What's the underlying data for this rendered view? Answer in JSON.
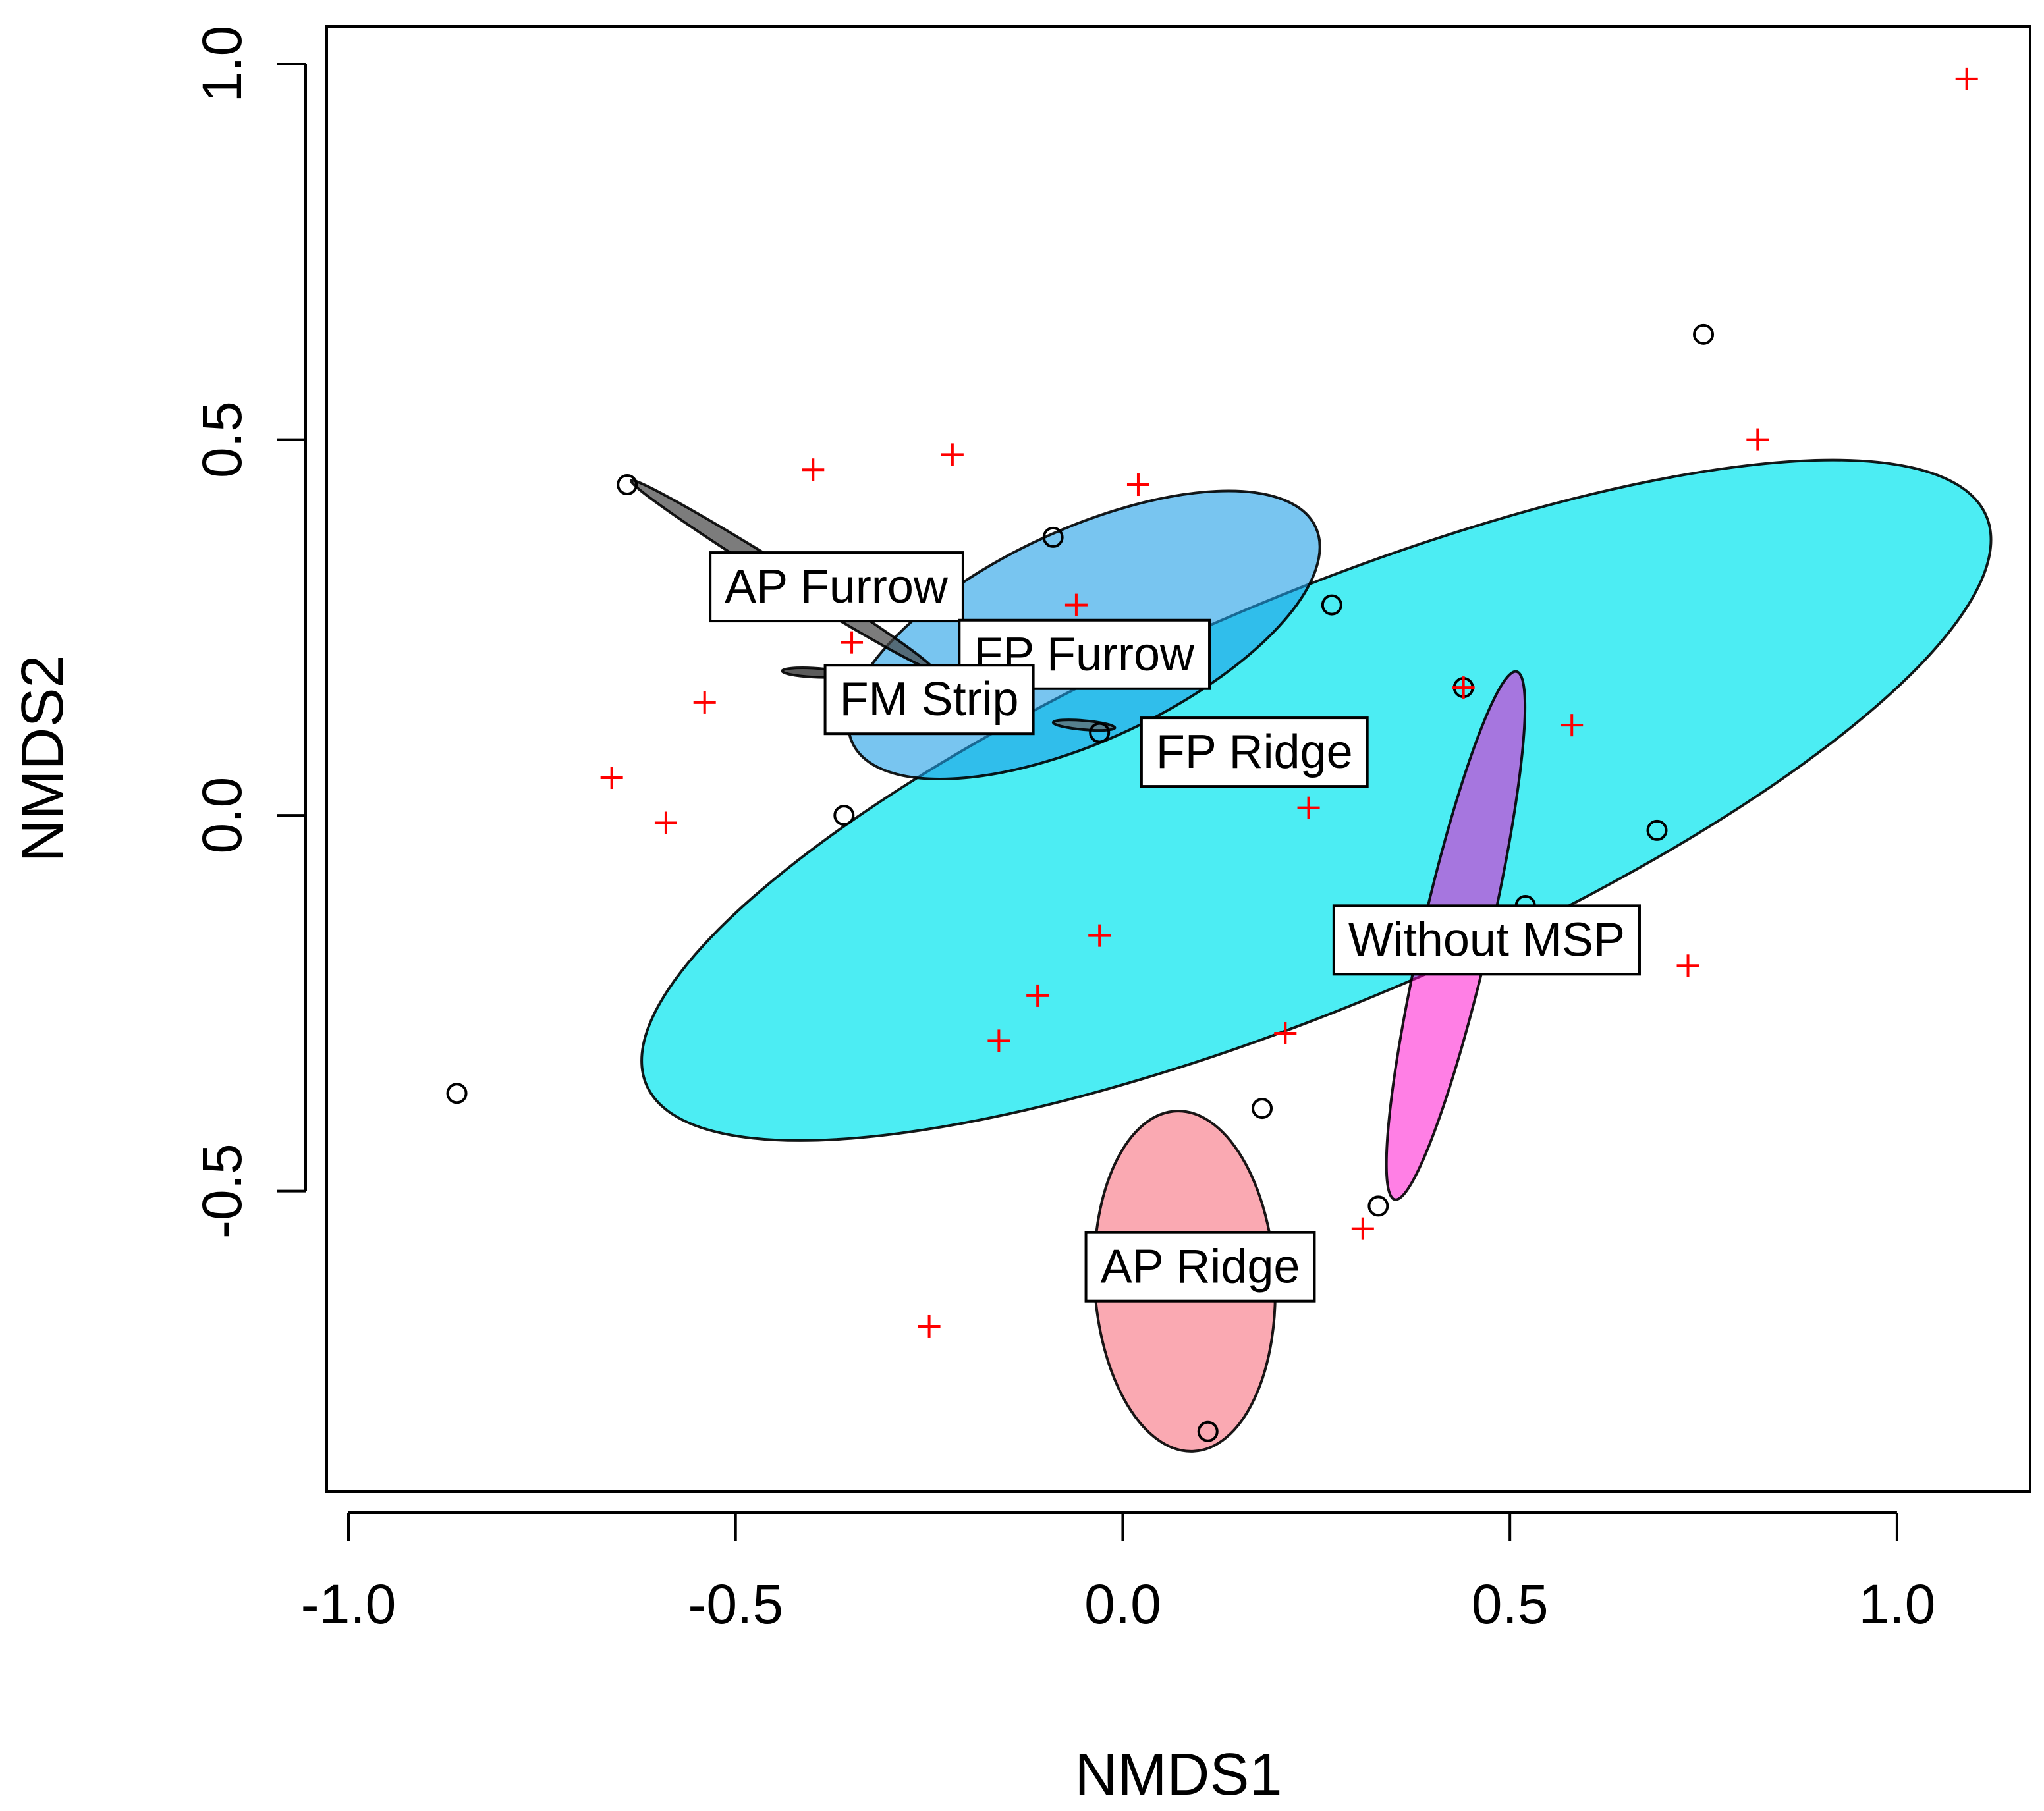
{
  "chart_data": {
    "type": "scatter",
    "title": "",
    "xlabel": "NMDS1",
    "ylabel": "NMDS2",
    "xlim": [
      -1.0,
      1.2
    ],
    "ylim": [
      -0.9,
      1.05
    ],
    "xticks": [
      -1.0,
      -0.5,
      0.0,
      0.5,
      1.0
    ],
    "xtick_labels": [
      "-1.0",
      "-0.5",
      "0.0",
      "0.5",
      "1.0"
    ],
    "yticks": [
      -0.5,
      0.0,
      0.5,
      1.0
    ],
    "ytick_labels": [
      "-0.5",
      "0.0",
      "0.5",
      "1.0"
    ],
    "grid": false,
    "ellipses": [
      {
        "name": "FP Ridge",
        "fill": "#00E5EE",
        "opacity": 0.7,
        "center": [
          0.25,
          0.02
        ],
        "semi_axes": [
          0.94,
          0.27
        ],
        "angle_deg": 23
      },
      {
        "name": "FP Furrow",
        "fill": "#1E9FE6",
        "opacity": 0.6,
        "center": [
          -0.05,
          0.24
        ],
        "semi_axes": [
          0.33,
          0.14
        ],
        "angle_deg": 25
      },
      {
        "name": "AP Furrow",
        "fill": "#444444",
        "opacity": 0.7,
        "center": [
          -0.44,
          0.32
        ],
        "semi_axes": [
          0.23,
          0.012
        ],
        "angle_deg": -32
      },
      {
        "name": "FM Strip",
        "fill": "#333333",
        "opacity": 0.8,
        "center": [
          -0.4,
          0.19
        ],
        "semi_axes": [
          0.04,
          0.006
        ],
        "angle_deg": -3
      },
      {
        "name": "FP Ridge (inner)",
        "fill": "#666666",
        "opacity": 0.7,
        "center": [
          -0.05,
          0.12
        ],
        "semi_axes": [
          0.04,
          0.006
        ],
        "angle_deg": -5
      },
      {
        "name": "Without MSP",
        "fill": "#FF00CC",
        "opacity": 0.5,
        "center": [
          0.43,
          -0.16
        ],
        "semi_axes": [
          0.35,
          0.045
        ],
        "angle_deg": 77
      },
      {
        "name": "AP Ridge",
        "fill": "#F7707E",
        "opacity": 0.6,
        "center": [
          0.08,
          -0.62
        ],
        "semi_axes": [
          0.22,
          0.12
        ],
        "angle_deg": 93
      }
    ],
    "labels": [
      {
        "text": "AP Furrow",
        "x": -0.37,
        "y": 0.305
      },
      {
        "text": "FP Furrow",
        "x": -0.05,
        "y": 0.215
      },
      {
        "text": "FM Strip",
        "x": -0.25,
        "y": 0.155
      },
      {
        "text": "FP Ridge",
        "x": 0.17,
        "y": 0.085
      },
      {
        "text": "Without MSP",
        "x": 0.47,
        "y": -0.165
      },
      {
        "text": "AP Ridge",
        "x": 0.1,
        "y": -0.6
      }
    ],
    "series": [
      {
        "name": "sites",
        "marker": "circle",
        "color": "#000000",
        "points": [
          [
            -0.64,
            0.44
          ],
          [
            -0.86,
            -0.37
          ],
          [
            -0.36,
            0.0
          ],
          [
            -0.09,
            0.37
          ],
          [
            -0.03,
            0.11
          ],
          [
            0.27,
            0.28
          ],
          [
            0.18,
            -0.39
          ],
          [
            0.11,
            -0.82
          ],
          [
            0.33,
            -0.52
          ],
          [
            0.44,
            0.17
          ],
          [
            0.52,
            -0.12
          ],
          [
            0.69,
            -0.02
          ],
          [
            0.75,
            0.64
          ]
        ]
      },
      {
        "name": "species",
        "marker": "plus",
        "color": "#FF0000",
        "points": [
          [
            1.09,
            0.98
          ],
          [
            -0.4,
            0.46
          ],
          [
            -0.22,
            0.48
          ],
          [
            0.02,
            0.44
          ],
          [
            -0.35,
            0.23
          ],
          [
            -0.54,
            0.15
          ],
          [
            -0.66,
            0.05
          ],
          [
            -0.59,
            -0.01
          ],
          [
            -0.06,
            0.28
          ],
          [
            0.24,
            0.01
          ],
          [
            0.44,
            0.17
          ],
          [
            0.58,
            0.12
          ],
          [
            0.82,
            0.5
          ],
          [
            -0.03,
            -0.16
          ],
          [
            -0.11,
            -0.24
          ],
          [
            -0.16,
            -0.3
          ],
          [
            0.21,
            -0.29
          ],
          [
            0.31,
            -0.55
          ],
          [
            0.73,
            -0.2
          ],
          [
            -0.25,
            -0.68
          ]
        ]
      }
    ]
  }
}
